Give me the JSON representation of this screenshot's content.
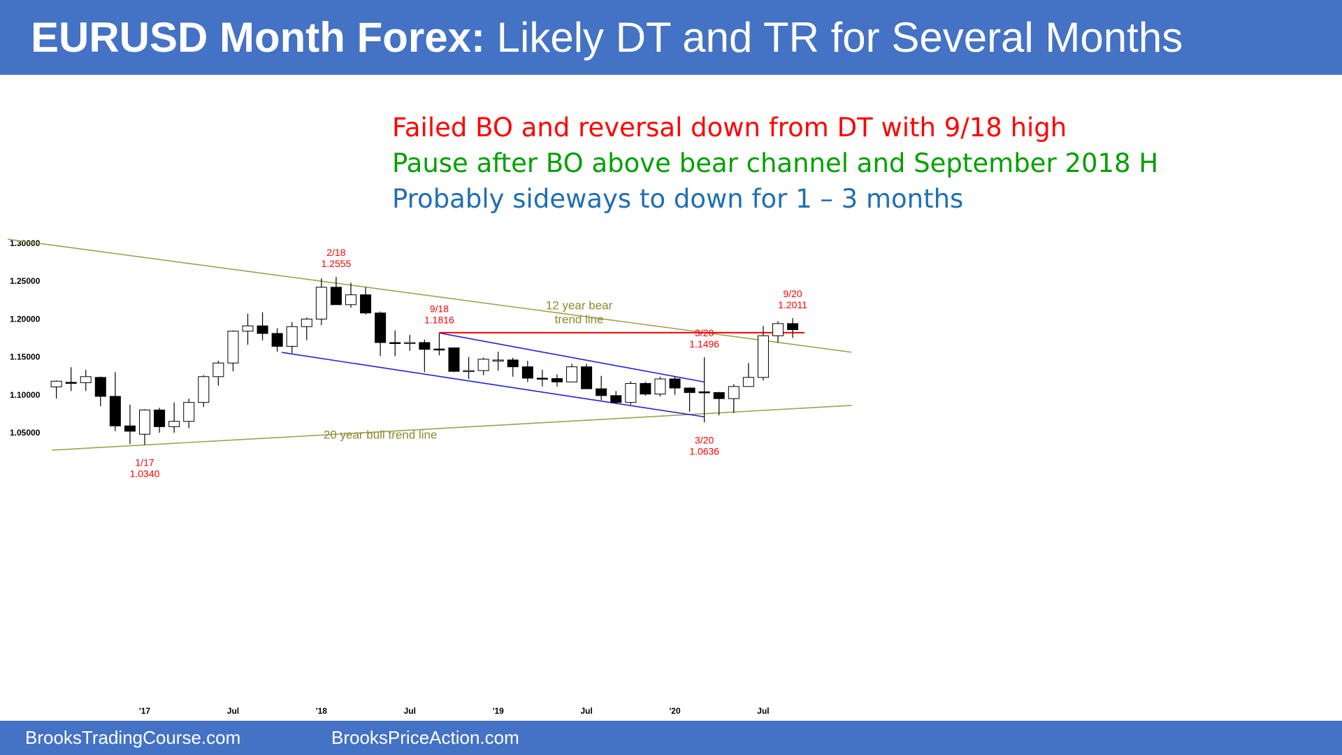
{
  "header": {
    "title_bold": "EURUSD Month Forex:",
    "title_rest": " Likely DT and TR for Several Months"
  },
  "annotations": [
    {
      "text": "Failed BO and reversal down from DT with 9/18 high",
      "color": "#ff0000"
    },
    {
      "text": "Pause after BO above bear channel and September 2018 H",
      "color": "#00a000"
    },
    {
      "text": "Probably sideways to down for 1 – 3 months",
      "color": "#1f6fb4"
    }
  ],
  "footer": {
    "left": "BrooksTradingCourse.com",
    "right": "BrooksPriceAction.com"
  },
  "chart_data": {
    "type": "candlestick",
    "title": "",
    "ylim": [
      1.02,
      1.31
    ],
    "y_ticks": [
      "1.30000",
      "1.25000",
      "1.20000",
      "1.15000",
      "1.10000",
      "1.05000"
    ],
    "x_labels": [
      {
        "label": "'17",
        "index": 6
      },
      {
        "label": "Jul",
        "index": 12
      },
      {
        "label": "'18",
        "index": 18
      },
      {
        "label": "Jul",
        "index": 24
      },
      {
        "label": "'19",
        "index": 30
      },
      {
        "label": "Jul",
        "index": 36
      },
      {
        "label": "'20",
        "index": 42
      },
      {
        "label": "Jul",
        "index": 48
      }
    ],
    "grid": false,
    "candles": [
      {
        "month": "2016-07",
        "o": 1.1105,
        "h": 1.119,
        "l": 1.095,
        "c": 1.118
      },
      {
        "month": "2016-08",
        "o": 1.1165,
        "h": 1.1365,
        "l": 1.105,
        "c": 1.1155
      },
      {
        "month": "2016-09",
        "o": 1.116,
        "h": 1.133,
        "l": 1.105,
        "c": 1.124
      },
      {
        "month": "2016-10",
        "o": 1.123,
        "h": 1.124,
        "l": 1.085,
        "c": 1.098
      },
      {
        "month": "2016-11",
        "o": 1.098,
        "h": 1.13,
        "l": 1.052,
        "c": 1.059
      },
      {
        "month": "2016-12",
        "o": 1.059,
        "h": 1.087,
        "l": 1.035,
        "c": 1.052
      },
      {
        "month": "2017-01",
        "o": 1.048,
        "h": 1.081,
        "l": 1.034,
        "c": 1.08
      },
      {
        "month": "2017-02",
        "o": 1.08,
        "h": 1.083,
        "l": 1.05,
        "c": 1.058
      },
      {
        "month": "2017-03",
        "o": 1.058,
        "h": 1.09,
        "l": 1.05,
        "c": 1.065
      },
      {
        "month": "2017-04",
        "o": 1.065,
        "h": 1.095,
        "l": 1.056,
        "c": 1.09
      },
      {
        "month": "2017-05",
        "o": 1.09,
        "h": 1.126,
        "l": 1.084,
        "c": 1.124
      },
      {
        "month": "2017-06",
        "o": 1.124,
        "h": 1.145,
        "l": 1.112,
        "c": 1.142
      },
      {
        "month": "2017-07",
        "o": 1.142,
        "h": 1.185,
        "l": 1.131,
        "c": 1.184
      },
      {
        "month": "2017-08",
        "o": 1.184,
        "h": 1.207,
        "l": 1.166,
        "c": 1.191
      },
      {
        "month": "2017-09",
        "o": 1.191,
        "h": 1.209,
        "l": 1.172,
        "c": 1.181
      },
      {
        "month": "2017-10",
        "o": 1.181,
        "h": 1.188,
        "l": 1.157,
        "c": 1.164
      },
      {
        "month": "2017-11",
        "o": 1.164,
        "h": 1.196,
        "l": 1.155,
        "c": 1.19
      },
      {
        "month": "2017-12",
        "o": 1.19,
        "h": 1.202,
        "l": 1.172,
        "c": 1.2
      },
      {
        "month": "2018-01",
        "o": 1.2,
        "h": 1.254,
        "l": 1.192,
        "c": 1.242
      },
      {
        "month": "2018-02",
        "o": 1.242,
        "h": 1.2555,
        "l": 1.22,
        "c": 1.219
      },
      {
        "month": "2018-03",
        "o": 1.219,
        "h": 1.248,
        "l": 1.215,
        "c": 1.232
      },
      {
        "month": "2018-04",
        "o": 1.232,
        "h": 1.242,
        "l": 1.206,
        "c": 1.208
      },
      {
        "month": "2018-05",
        "o": 1.208,
        "h": 1.21,
        "l": 1.151,
        "c": 1.169
      },
      {
        "month": "2018-06",
        "o": 1.169,
        "h": 1.185,
        "l": 1.151,
        "c": 1.1685
      },
      {
        "month": "2018-07",
        "o": 1.1685,
        "h": 1.179,
        "l": 1.158,
        "c": 1.169
      },
      {
        "month": "2018-08",
        "o": 1.169,
        "h": 1.173,
        "l": 1.13,
        "c": 1.16
      },
      {
        "month": "2018-09",
        "o": 1.1605,
        "h": 1.1816,
        "l": 1.152,
        "c": 1.16
      },
      {
        "month": "2018-10",
        "o": 1.162,
        "h": 1.162,
        "l": 1.13,
        "c": 1.131
      },
      {
        "month": "2018-11",
        "o": 1.131,
        "h": 1.15,
        "l": 1.121,
        "c": 1.132
      },
      {
        "month": "2018-12",
        "o": 1.132,
        "h": 1.149,
        "l": 1.126,
        "c": 1.147
      },
      {
        "month": "2019-01",
        "o": 1.145,
        "h": 1.157,
        "l": 1.132,
        "c": 1.146
      },
      {
        "month": "2019-02",
        "o": 1.146,
        "h": 1.149,
        "l": 1.124,
        "c": 1.137
      },
      {
        "month": "2019-03",
        "o": 1.137,
        "h": 1.145,
        "l": 1.117,
        "c": 1.122
      },
      {
        "month": "2019-04",
        "o": 1.122,
        "h": 1.133,
        "l": 1.111,
        "c": 1.1215
      },
      {
        "month": "2019-05",
        "o": 1.1215,
        "h": 1.127,
        "l": 1.111,
        "c": 1.117
      },
      {
        "month": "2019-06",
        "o": 1.117,
        "h": 1.141,
        "l": 1.117,
        "c": 1.137
      },
      {
        "month": "2019-07",
        "o": 1.137,
        "h": 1.141,
        "l": 1.108,
        "c": 1.108
      },
      {
        "month": "2019-08",
        "o": 1.108,
        "h": 1.125,
        "l": 1.093,
        "c": 1.099
      },
      {
        "month": "2019-09",
        "o": 1.099,
        "h": 1.105,
        "l": 1.088,
        "c": 1.09
      },
      {
        "month": "2019-10",
        "o": 1.09,
        "h": 1.118,
        "l": 1.087,
        "c": 1.115
      },
      {
        "month": "2019-11",
        "o": 1.115,
        "h": 1.117,
        "l": 1.099,
        "c": 1.101
      },
      {
        "month": "2019-12",
        "o": 1.101,
        "h": 1.124,
        "l": 1.098,
        "c": 1.121
      },
      {
        "month": "2020-01",
        "o": 1.121,
        "h": 1.124,
        "l": 1.1,
        "c": 1.109
      },
      {
        "month": "2020-02",
        "o": 1.109,
        "h": 1.11,
        "l": 1.078,
        "c": 1.103
      },
      {
        "month": "2020-03",
        "o": 1.104,
        "h": 1.1496,
        "l": 1.0636,
        "c": 1.103
      },
      {
        "month": "2020-04",
        "o": 1.103,
        "h": 1.104,
        "l": 1.073,
        "c": 1.095
      },
      {
        "month": "2020-05",
        "o": 1.095,
        "h": 1.114,
        "l": 1.076,
        "c": 1.111
      },
      {
        "month": "2020-06",
        "o": 1.111,
        "h": 1.142,
        "l": 1.111,
        "c": 1.123
      },
      {
        "month": "2020-07",
        "o": 1.123,
        "h": 1.191,
        "l": 1.119,
        "c": 1.178
      },
      {
        "month": "2020-08",
        "o": 1.178,
        "h": 1.197,
        "l": 1.169,
        "c": 1.194
      },
      {
        "month": "2020-09",
        "o": 1.194,
        "h": 1.2011,
        "l": 1.175,
        "c": 1.186
      }
    ],
    "lines": [
      {
        "name": "12 year bear trend line",
        "color": "#a0a050",
        "from": {
          "index": -3.3,
          "price": 1.3054
        },
        "to": {
          "index": 54,
          "price": 1.1562
        }
      },
      {
        "name": "20 year bull trend line",
        "color": "#a0a050",
        "from": {
          "index": -0.3,
          "price": 1.027
        },
        "to": {
          "index": 54,
          "price": 1.086
        }
      },
      {
        "name": "bear channel upper",
        "color": "#2020e0",
        "from": {
          "index": 26,
          "price": 1.1816
        },
        "to": {
          "index": 44,
          "price": 1.117
        }
      },
      {
        "name": "bear channel lower",
        "color": "#2020e0",
        "from": {
          "index": 15.3,
          "price": 1.156
        },
        "to": {
          "index": 44,
          "price": 1.071
        }
      },
      {
        "name": "9/18 high",
        "color": "#ff0000",
        "from": {
          "index": 26,
          "price": 1.182
        },
        "to": {
          "index": 50.8,
          "price": 1.182
        }
      }
    ],
    "labels": [
      {
        "text": [
          "2/18",
          "1.2555"
        ],
        "index": 19,
        "price": 1.2555,
        "color": "#ff0000",
        "pos": "above"
      },
      {
        "text": [
          "9/18",
          "1.1816"
        ],
        "index": 26,
        "price": 1.1816,
        "color": "#ff0000",
        "pos": "above"
      },
      {
        "text": [
          "3/20",
          "1.1496"
        ],
        "index": 44,
        "price": 1.1496,
        "color": "#ff0000",
        "pos": "above"
      },
      {
        "text": [
          "9/20",
          "1.2011"
        ],
        "index": 50,
        "price": 1.2011,
        "color": "#ff0000",
        "pos": "above"
      },
      {
        "text": [
          "3/20",
          "1.0636"
        ],
        "index": 44,
        "price": 1.0636,
        "color": "#ff0000",
        "pos": "below"
      },
      {
        "text": [
          "1/17",
          "1.0340"
        ],
        "index": 6,
        "price": 1.034,
        "color": "#ff0000",
        "pos": "below"
      },
      {
        "text": [
          "12 year bear",
          "trend line"
        ],
        "index": 35.5,
        "price": 1.2082,
        "color": "#8a8a30",
        "pos": "center"
      },
      {
        "text": [
          "20 year bull trend line"
        ],
        "index": 22,
        "price": 1.047,
        "color": "#8a8a30",
        "pos": "center"
      }
    ]
  }
}
